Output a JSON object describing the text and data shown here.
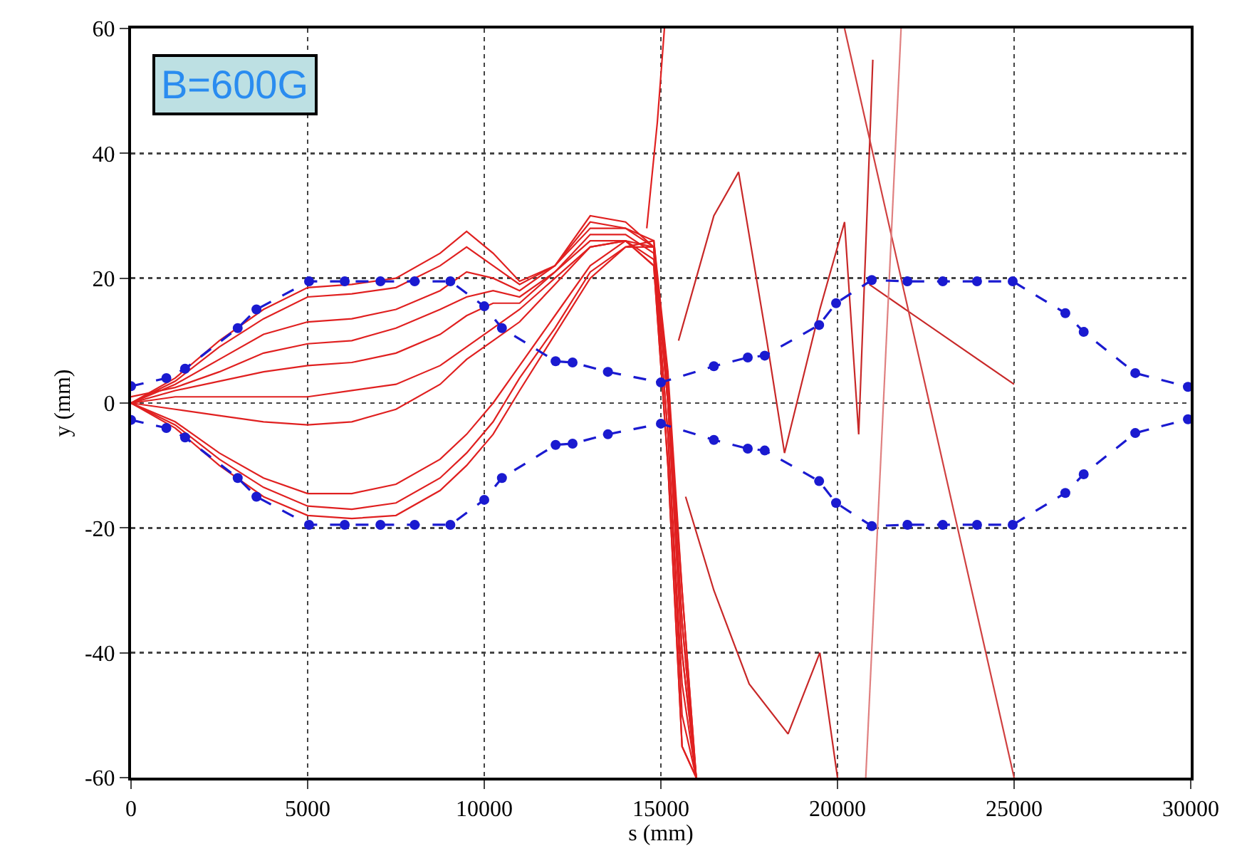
{
  "chart_data": {
    "type": "line",
    "xlabel": "s (mm)",
    "ylabel": "y (mm)",
    "annotations": [
      "B=600G"
    ],
    "xlim": [
      0,
      30000
    ],
    "xticks": [
      0,
      5000,
      10000,
      15000,
      20000,
      25000,
      30000
    ],
    "ylim": [
      -60,
      60
    ],
    "yticks": [
      -60,
      -40,
      -20,
      0,
      20,
      40,
      60
    ],
    "grid": true,
    "line_style": "solid",
    "marker": "none",
    "x": [
      0,
      1250,
      2500,
      3750,
      5000,
      6250,
      7500,
      8750,
      9500,
      10250,
      11000,
      12000,
      13000,
      14000,
      14800,
      15200,
      15600,
      16000
    ],
    "series": [
      {
        "color": "#e02020",
        "values": [
          0,
          4,
          10,
          15,
          18.5,
          19,
          20,
          24,
          27.5,
          24,
          19.5,
          22,
          30,
          29,
          25,
          0,
          -35,
          -60
        ]
      },
      {
        "color": "#e02020",
        "values": [
          0,
          3.5,
          9,
          13.5,
          17,
          17.5,
          18.5,
          22,
          25,
          22,
          19,
          22,
          29,
          28,
          26,
          2,
          -30,
          -60
        ]
      },
      {
        "color": "#e02020",
        "values": [
          0,
          3,
          7,
          11,
          13,
          13.5,
          15,
          18,
          21,
          20,
          18,
          22,
          28,
          28,
          25,
          0,
          -40,
          -60
        ]
      },
      {
        "color": "#e02020",
        "values": [
          1,
          2.5,
          5,
          8,
          9.5,
          10,
          12,
          15,
          17,
          18,
          17,
          21,
          27,
          27,
          24,
          -5,
          -45,
          -60
        ]
      },
      {
        "color": "#e02020",
        "values": [
          0,
          2,
          3.5,
          5,
          6,
          6.5,
          8,
          11,
          14,
          16,
          16,
          21,
          26,
          26,
          23,
          -5,
          -50,
          -60
        ]
      },
      {
        "color": "#e02020",
        "values": [
          0,
          1,
          1,
          1,
          1,
          2,
          3,
          6,
          9,
          12,
          15,
          20,
          25,
          26,
          22,
          -10,
          -55,
          -60
        ]
      },
      {
        "color": "#e02020",
        "values": [
          0,
          -1,
          -2,
          -3,
          -3.5,
          -3,
          -1,
          3,
          7,
          10,
          13,
          19,
          25,
          26,
          22,
          -10,
          -55,
          -60
        ]
      },
      {
        "color": "#e02020",
        "values": [
          0,
          -3,
          -8,
          -12,
          -14.5,
          -14.5,
          -13,
          -9,
          -5,
          0,
          6,
          14,
          22,
          26,
          25,
          0,
          -40,
          -60
        ]
      },
      {
        "color": "#e02020",
        "values": [
          0,
          -4,
          -10,
          -15,
          -18,
          -18.5,
          -18,
          -14,
          -10,
          -5,
          2,
          11,
          20,
          25,
          26,
          5,
          -30,
          -60
        ]
      },
      {
        "color": "#e02020",
        "values": [
          0,
          -3.5,
          -9,
          -13.5,
          -16.5,
          -17,
          -16,
          -12,
          -8,
          -3,
          4,
          12,
          21,
          25,
          25,
          3,
          -35,
          -60
        ]
      },
      {
        "color": "#e02020",
        "x": [
          14600,
          14900,
          15100
        ],
        "values": [
          28,
          45,
          60
        ]
      },
      {
        "color": "#c82828",
        "x": [
          15500,
          16500,
          17200,
          18000,
          18500,
          19500,
          20200,
          20600,
          21000
        ],
        "values": [
          10,
          30,
          37,
          10,
          -8,
          15,
          29,
          -5,
          55
        ]
      },
      {
        "color": "#c82828",
        "x": [
          15700,
          16500,
          17500,
          18600,
          19500,
          20000
        ],
        "values": [
          -15,
          -30,
          -45,
          -53,
          -40,
          -60
        ]
      },
      {
        "color": "#c82828",
        "x": [
          20900,
          25000
        ],
        "values": [
          19,
          3
        ]
      },
      {
        "color": "#d04040",
        "x": [
          20200,
          25000
        ],
        "values": [
          60,
          -60
        ]
      },
      {
        "color": "#e08080",
        "x": [
          20800,
          21800
        ],
        "values": [
          -60,
          60
        ]
      },
      {
        "color": "#1a1ad0",
        "marker": "circle",
        "line_style": "dashed",
        "x": [
          0,
          1000,
          1530,
          3020,
          3550,
          5040,
          6050,
          7060,
          8030,
          9040,
          10000,
          10500,
          12020,
          12500,
          13500,
          15000,
          16500,
          17460,
          17940,
          19480,
          19960,
          20970,
          21980,
          22980,
          23950,
          24960,
          26450,
          26970,
          28430,
          29920
        ],
        "values": [
          2.7,
          4,
          5.5,
          12,
          15,
          19.5,
          19.5,
          19.5,
          19.5,
          19.5,
          15.5,
          12,
          6.7,
          6.5,
          5,
          3.3,
          5.9,
          7.3,
          7.6,
          12.5,
          16,
          19.7,
          19.5,
          19.5,
          19.5,
          19.5,
          14.4,
          11.4,
          4.8,
          2.6
        ]
      },
      {
        "color": "#1a1ad0",
        "marker": "circle",
        "line_style": "dashed",
        "x": [
          0,
          1000,
          1530,
          3020,
          3550,
          5040,
          6050,
          7060,
          8030,
          9040,
          10000,
          10500,
          12020,
          12500,
          13500,
          15000,
          16500,
          17460,
          17940,
          19480,
          19960,
          20970,
          21980,
          22980,
          23950,
          24960,
          26450,
          26970,
          28430,
          29920
        ],
        "values": [
          -2.7,
          -4,
          -5.5,
          -12,
          -15,
          -19.5,
          -19.5,
          -19.5,
          -19.5,
          -19.5,
          -15.5,
          -12,
          -6.7,
          -6.5,
          -5,
          -3.3,
          -5.9,
          -7.3,
          -7.6,
          -12.5,
          -16,
          -19.7,
          -19.5,
          -19.5,
          -19.5,
          -19.5,
          -14.4,
          -11.4,
          -4.8,
          -2.6
        ]
      }
    ]
  }
}
